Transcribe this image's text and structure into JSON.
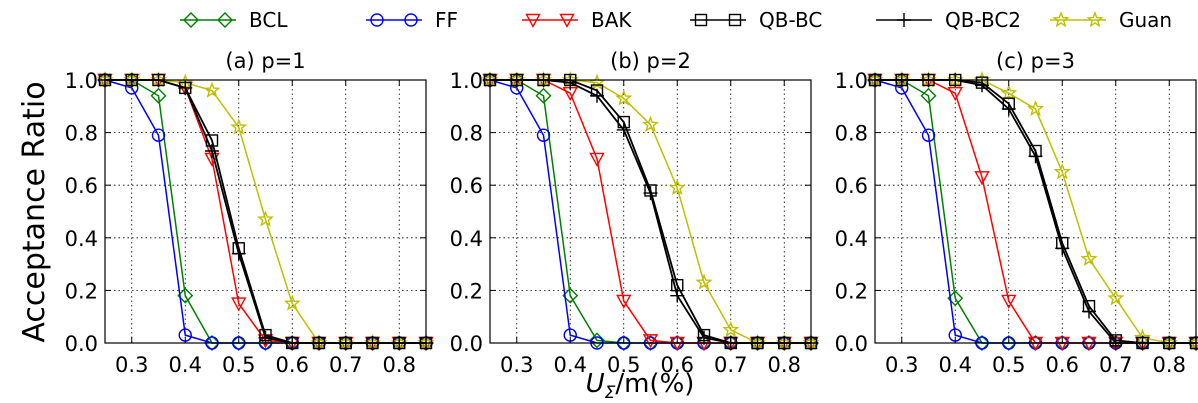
{
  "chart_data": [
    {
      "type": "line",
      "title": "(a) p=1",
      "ylabel": "Acceptance Ratio",
      "xlabel": "",
      "x": [
        0.25,
        0.3,
        0.35,
        0.4,
        0.45,
        0.5,
        0.55,
        0.6,
        0.65,
        0.7,
        0.75,
        0.8,
        0.85
      ],
      "xticks": [
        "0.3",
        "0.4",
        "0.5",
        "0.6",
        "0.7",
        "0.8"
      ],
      "yticks": [
        "0.0",
        "0.2",
        "0.4",
        "0.6",
        "0.8",
        "1.0"
      ],
      "xlim": [
        0.25,
        0.85
      ],
      "ylim": [
        0.0,
        1.0
      ],
      "grid": true,
      "series": [
        {
          "name": "BCL",
          "values": [
            1.0,
            1.0,
            0.94,
            0.18,
            0.0,
            0.0,
            0.0,
            0.0,
            0.0,
            0.0,
            0.0,
            0.0,
            0.0
          ]
        },
        {
          "name": "FF",
          "values": [
            1.0,
            0.97,
            0.79,
            0.03,
            0.0,
            0.0,
            0.0,
            0.0,
            0.0,
            0.0,
            0.0,
            0.0,
            0.0
          ]
        },
        {
          "name": "BAK",
          "values": [
            1.0,
            1.0,
            1.0,
            0.97,
            0.7,
            0.15,
            0.01,
            0.0,
            0.0,
            0.0,
            0.0,
            0.0,
            0.0
          ]
        },
        {
          "name": "QB-BC",
          "values": [
            1.0,
            1.0,
            1.0,
            0.97,
            0.77,
            0.36,
            0.03,
            0.0,
            0.0,
            0.0,
            0.0,
            0.0,
            0.0
          ]
        },
        {
          "name": "QB-BC2",
          "values": [
            1.0,
            1.0,
            1.0,
            0.97,
            0.73,
            0.34,
            0.02,
            0.0,
            0.0,
            0.0,
            0.0,
            0.0,
            0.0
          ]
        },
        {
          "name": "Guan",
          "values": [
            1.0,
            1.0,
            1.0,
            0.99,
            0.96,
            0.82,
            0.47,
            0.15,
            0.0,
            0.0,
            0.0,
            0.0,
            0.0
          ]
        }
      ]
    },
    {
      "type": "line",
      "title": "(b) p=2",
      "ylabel": "",
      "xlabel": "U_Σ/m(%)",
      "x": [
        0.25,
        0.3,
        0.35,
        0.4,
        0.45,
        0.5,
        0.55,
        0.6,
        0.65,
        0.7,
        0.75,
        0.8,
        0.85
      ],
      "xticks": [
        "0.3",
        "0.4",
        "0.5",
        "0.6",
        "0.7",
        "0.8"
      ],
      "yticks": [
        "0.0",
        "0.2",
        "0.4",
        "0.6",
        "0.8",
        "1.0"
      ],
      "xlim": [
        0.25,
        0.85
      ],
      "ylim": [
        0.0,
        1.0
      ],
      "grid": true,
      "series": [
        {
          "name": "BCL",
          "values": [
            1.0,
            1.0,
            0.94,
            0.18,
            0.01,
            0.0,
            0.0,
            0.0,
            0.0,
            0.0,
            0.0,
            0.0,
            0.0
          ]
        },
        {
          "name": "FF",
          "values": [
            1.0,
            0.97,
            0.79,
            0.03,
            0.0,
            0.0,
            0.0,
            0.0,
            0.0,
            0.0,
            0.0,
            0.0,
            0.0
          ]
        },
        {
          "name": "BAK",
          "values": [
            1.0,
            1.0,
            1.0,
            0.95,
            0.7,
            0.16,
            0.01,
            0.0,
            0.0,
            0.0,
            0.0,
            0.0,
            0.0
          ]
        },
        {
          "name": "QB-BC",
          "values": [
            1.0,
            1.0,
            1.0,
            1.0,
            0.96,
            0.84,
            0.58,
            0.22,
            0.03,
            0.0,
            0.0,
            0.0,
            0.0
          ]
        },
        {
          "name": "QB-BC2",
          "values": [
            1.0,
            1.0,
            1.0,
            0.99,
            0.94,
            0.81,
            0.57,
            0.18,
            0.02,
            0.0,
            0.0,
            0.0,
            0.0
          ]
        },
        {
          "name": "Guan",
          "values": [
            1.0,
            1.0,
            1.0,
            1.0,
            0.99,
            0.93,
            0.83,
            0.59,
            0.23,
            0.05,
            0.0,
            0.0,
            0.0
          ]
        }
      ]
    },
    {
      "type": "line",
      "title": "(c) p=3",
      "ylabel": "",
      "xlabel": "",
      "x": [
        0.25,
        0.3,
        0.35,
        0.4,
        0.45,
        0.5,
        0.55,
        0.6,
        0.65,
        0.7,
        0.75,
        0.8,
        0.85
      ],
      "xticks": [
        "0.3",
        "0.4",
        "0.5",
        "0.6",
        "0.7",
        "0.8"
      ],
      "yticks": [
        "0.0",
        "0.2",
        "0.4",
        "0.6",
        "0.8",
        "1.0"
      ],
      "xlim": [
        0.25,
        0.85
      ],
      "ylim": [
        0.0,
        1.0
      ],
      "grid": true,
      "series": [
        {
          "name": "BCL",
          "values": [
            1.0,
            1.0,
            0.94,
            0.17,
            0.0,
            0.0,
            0.0,
            0.0,
            0.0,
            0.0,
            0.0,
            0.0,
            0.0
          ]
        },
        {
          "name": "FF",
          "values": [
            1.0,
            0.97,
            0.79,
            0.03,
            0.0,
            0.0,
            0.0,
            0.0,
            0.0,
            0.0,
            0.0,
            0.0,
            0.0
          ]
        },
        {
          "name": "BAK",
          "values": [
            1.0,
            1.0,
            1.0,
            0.95,
            0.63,
            0.16,
            0.0,
            0.0,
            0.0,
            0.0,
            0.0,
            0.0,
            0.0
          ]
        },
        {
          "name": "QB-BC",
          "values": [
            1.0,
            1.0,
            1.0,
            1.0,
            0.99,
            0.91,
            0.73,
            0.38,
            0.14,
            0.01,
            0.0,
            0.0,
            0.0
          ]
        },
        {
          "name": "QB-BC2",
          "values": [
            1.0,
            1.0,
            1.0,
            1.0,
            0.98,
            0.89,
            0.71,
            0.36,
            0.12,
            0.0,
            0.0,
            0.0,
            0.0
          ]
        },
        {
          "name": "Guan",
          "values": [
            1.0,
            1.0,
            1.0,
            1.0,
            1.0,
            0.95,
            0.89,
            0.65,
            0.32,
            0.17,
            0.02,
            0.0,
            0.0
          ]
        }
      ]
    }
  ],
  "legend": {
    "placement": "top",
    "entries": [
      {
        "name": "BCL",
        "color": "#008000",
        "marker": "diamond",
        "markerevery": "all"
      },
      {
        "name": "FF",
        "color": "#0000ff",
        "marker": "circle",
        "markerevery": "all"
      },
      {
        "name": "BAK",
        "color": "#ff0000",
        "marker": "triangle-down",
        "markerevery": "all"
      },
      {
        "name": "QB-BC",
        "color": "#000000",
        "marker": "square",
        "markerevery": "all"
      },
      {
        "name": "QB-BC2",
        "color": "#000000",
        "marker": "plus",
        "markerevery": "none"
      },
      {
        "name": "Guan",
        "color": "#bfbf00",
        "marker": "star",
        "markerevery": "all"
      }
    ]
  },
  "axis_text": {
    "ylabel": "Acceptance Ratio",
    "xlabel_main": "U",
    "xlabel_sub": "Σ",
    "xlabel_rest": "/m(%)"
  }
}
